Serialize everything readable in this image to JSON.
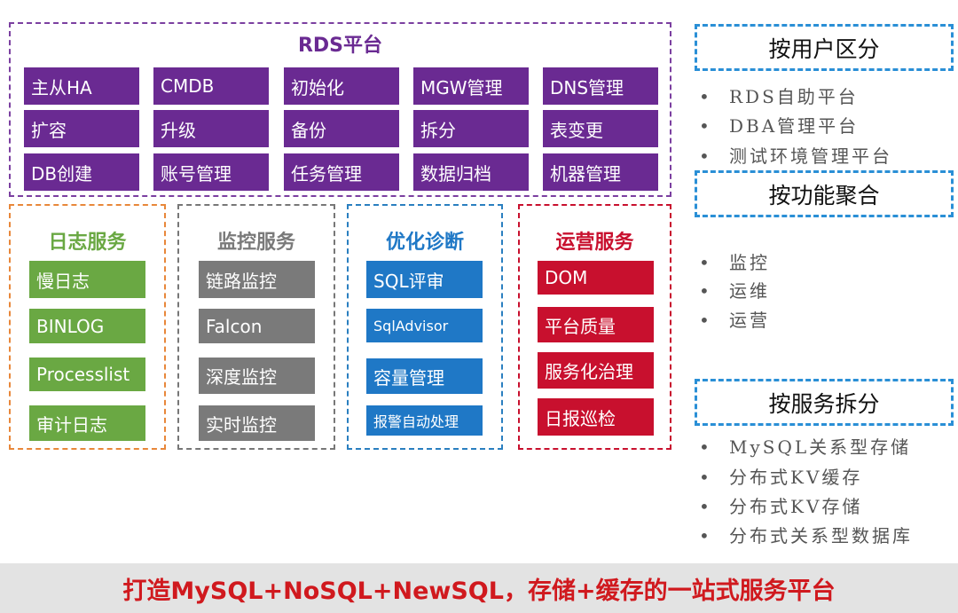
{
  "rds": {
    "title": "RDS平台",
    "color": "#6a2a92",
    "tiles": [
      "主从HA",
      "CMDB",
      "初始化",
      "MGW管理",
      "DNS管理",
      "扩容",
      "升级",
      "备份",
      "拆分",
      "表变更",
      "DB创建",
      "账号管理",
      "任务管理",
      "数据归档",
      "机器管理"
    ]
  },
  "groups": [
    {
      "title": "日志服务",
      "color": "#6aa843",
      "border": "#e8873a",
      "items": [
        "慢日志",
        "BINLOG",
        "Processlist",
        "审计日志"
      ]
    },
    {
      "title": "监控服务",
      "color": "#7a7a7a",
      "border": "#777777",
      "items": [
        "链路监控",
        "Falcon",
        "深度监控",
        "实时监控"
      ]
    },
    {
      "title": "优化诊断",
      "color": "#1f78c6",
      "border": "#2a7fc0",
      "items": [
        "SQL评审",
        "SqlAdvisor",
        "容量管理",
        "报警自动处理"
      ]
    },
    {
      "title": "运营服务",
      "color": "#c8102e",
      "border": "#c8102e",
      "items": [
        "DOM",
        "平台质量",
        "服务化治理",
        "日报巡检"
      ]
    }
  ],
  "right": [
    {
      "title": "按用户区分",
      "items": [
        "RDS自助平台",
        "DBA管理平台",
        "测试环境管理平台"
      ]
    },
    {
      "title": "按功能聚合",
      "items": [
        "监控",
        "运维",
        "运营"
      ]
    },
    {
      "title": "按服务拆分",
      "items": [
        "MySQL关系型存储",
        "分布式KV缓存",
        "分布式KV存储",
        "分布式关系型数据库"
      ]
    }
  ],
  "banner": "打造MySQL+NoSQL+NewSQL，存储+缓存的一站式服务平台"
}
